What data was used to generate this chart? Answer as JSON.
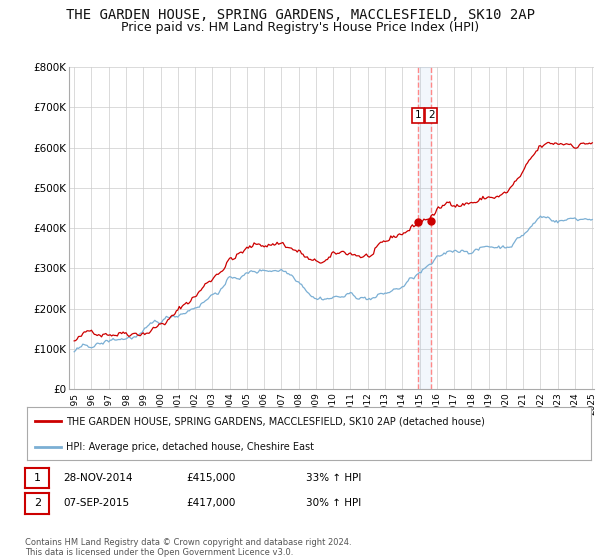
{
  "title": "THE GARDEN HOUSE, SPRING GARDENS, MACCLESFIELD, SK10 2AP",
  "subtitle": "Price paid vs. HM Land Registry's House Price Index (HPI)",
  "title_fontsize": 10,
  "subtitle_fontsize": 9,
  "bg_color": "#ffffff",
  "plot_bg_color": "#ffffff",
  "grid_color": "#cccccc",
  "red_line_color": "#cc0000",
  "blue_line_color": "#7bafd4",
  "vline_color": "#ff8888",
  "vband_color": "#ddeeff",
  "legend_label_red": "THE GARDEN HOUSE, SPRING GARDENS, MACCLESFIELD, SK10 2AP (detached house)",
  "legend_label_blue": "HPI: Average price, detached house, Cheshire East",
  "annotation1_num": "1",
  "annotation1_date": "28-NOV-2014",
  "annotation1_price": "£415,000",
  "annotation1_hpi": "33% ↑ HPI",
  "annotation2_num": "2",
  "annotation2_date": "07-SEP-2015",
  "annotation2_price": "£417,000",
  "annotation2_hpi": "30% ↑ HPI",
  "copyright_text": "Contains HM Land Registry data © Crown copyright and database right 2024.\nThis data is licensed under the Open Government Licence v3.0.",
  "ylim_min": 0,
  "ylim_max": 800000,
  "yticks": [
    0,
    100000,
    200000,
    300000,
    400000,
    500000,
    600000,
    700000,
    800000
  ],
  "ytick_labels": [
    "£0",
    "£100K",
    "£200K",
    "£300K",
    "£400K",
    "£500K",
    "£600K",
    "£700K",
    "£800K"
  ],
  "year_start": 1995,
  "year_end": 2025,
  "vline1_year": 2014.917,
  "vline2_year": 2015.667,
  "sale1_year": 2014.917,
  "sale1_price": 415000,
  "sale2_year": 2015.667,
  "sale2_price": 417000
}
